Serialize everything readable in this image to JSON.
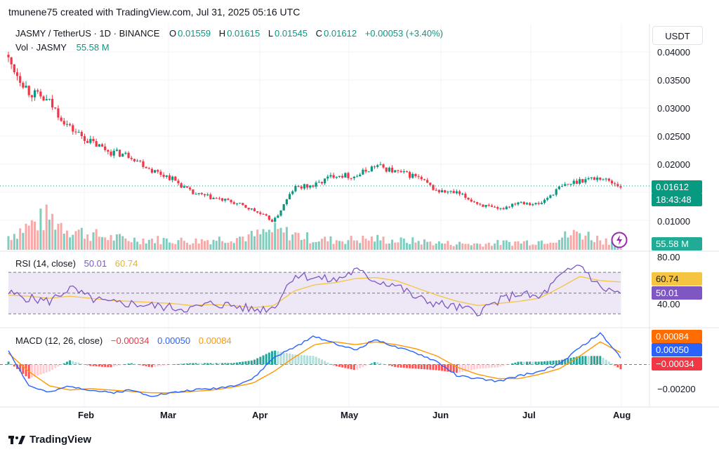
{
  "attribution": "tmunene75 created with TradingView.com, Jul 31, 2025 05:16 UTC",
  "branding": "TradingView",
  "colors": {
    "up": "#089981",
    "down": "#f23645",
    "vol_up": "#7fcdbf",
    "vol_down": "#f7a9a7",
    "rsi_line": "#7e57c2",
    "rsi_ma": "#f5c542",
    "rsi_band": "#ede7f6",
    "macd_line": "#2962ff",
    "signal_line": "#ff9800",
    "price_line": "#089981"
  },
  "price_panel": {
    "symbol": "JASMY / TetherUS · 1D · BINANCE",
    "o_label": "O",
    "o_value": "0.01559",
    "h_label": "H",
    "h_value": "0.01615",
    "l_label": "L",
    "l_value": "0.01545",
    "c_label": "C",
    "c_value": "0.01612",
    "change": "+0.00053 (+3.40%)",
    "volume_label": "Vol · JASMY",
    "volume_value": "55.58 M",
    "currency": "USDT",
    "last_price": "0.01612",
    "countdown": "18:43:48",
    "volume_tag": "55.58 M",
    "y_ticks": [
      "0.04000",
      "0.03500",
      "0.03000",
      "0.02500",
      "0.02000",
      "0.01000"
    ]
  },
  "rsi_panel": {
    "title": "RSI (14, close)",
    "rsi_value": "50.01",
    "ma_value": "60.74",
    "y_ticks": [
      "80.00",
      "40.00"
    ]
  },
  "macd_panel": {
    "title": "MACD (12, 26, close)",
    "hist_value": "−0.00034",
    "macd_value": "0.00050",
    "signal_value": "0.00084",
    "y_ticks": [
      "−0.00200"
    ]
  },
  "x_axis": {
    "months": [
      "Feb",
      "Mar",
      "Apr",
      "May",
      "Jun",
      "Jul",
      "Aug"
    ]
  },
  "chart_data": [
    {
      "type": "candlestick",
      "x_axis": "date (daily)",
      "dates": [
        "2025-01-04",
        "2025-01-11",
        "2025-01-18",
        "2025-01-25",
        "2025-02-01",
        "2025-02-08",
        "2025-02-15",
        "2025-02-22",
        "2025-03-01",
        "2025-03-08",
        "2025-03-15",
        "2025-03-22",
        "2025-03-29",
        "2025-04-05",
        "2025-04-12",
        "2025-04-19",
        "2025-04-26",
        "2025-05-03",
        "2025-05-10",
        "2025-05-17",
        "2025-05-24",
        "2025-05-31",
        "2025-06-07",
        "2025-06-14",
        "2025-06-21",
        "2025-06-28",
        "2025-07-05",
        "2025-07-12",
        "2025-07-19",
        "2025-07-26",
        "2025-07-31"
      ],
      "close": [
        0.0385,
        0.033,
        0.031,
        0.0265,
        0.024,
        0.0222,
        0.0215,
        0.019,
        0.0175,
        0.0148,
        0.014,
        0.0132,
        0.0118,
        0.0098,
        0.0158,
        0.0162,
        0.0182,
        0.0178,
        0.0198,
        0.0186,
        0.0178,
        0.0152,
        0.0148,
        0.013,
        0.0118,
        0.0134,
        0.0128,
        0.0158,
        0.0172,
        0.0176,
        0.01612
      ],
      "ylim": [
        0.009,
        0.0415
      ]
    },
    {
      "type": "bar",
      "name": "Vol · JASMY",
      "values": [
        40,
        70,
        95,
        60,
        45,
        35,
        30,
        30,
        28,
        25,
        30,
        35,
        40,
        55,
        45,
        30,
        28,
        30,
        32,
        26,
        25,
        20,
        18,
        17,
        20,
        22,
        25,
        35,
        50,
        30,
        20
      ]
    },
    {
      "type": "line",
      "name": "RSI (14, close)",
      "values": [
        50,
        45,
        42,
        55,
        45,
        40,
        40,
        38,
        36,
        35,
        40,
        38,
        34,
        36,
        68,
        65,
        62,
        72,
        62,
        58,
        45,
        40,
        36,
        32,
        42,
        50,
        45,
        65,
        78,
        55,
        50.01
      ],
      "ma": [
        48,
        47,
        45,
        47,
        45,
        43,
        42,
        41,
        40,
        38,
        39,
        38,
        36,
        38,
        52,
        58,
        60,
        64,
        65,
        62,
        55,
        48,
        42,
        38,
        40,
        42,
        45,
        55,
        66,
        62,
        60.74
      ],
      "ylim": [
        20,
        85
      ]
    },
    {
      "type": "line",
      "name": "MACD (12, 26, close)",
      "macd": [
        0.001,
        -0.0015,
        -0.002,
        -0.0015,
        -0.0018,
        -0.002,
        -0.0018,
        -0.0022,
        -0.002,
        -0.0018,
        -0.0017,
        -0.0015,
        -0.001,
        0.0005,
        0.0012,
        0.002,
        0.0015,
        0.001,
        0.0018,
        0.0012,
        0.0008,
        0.0002,
        -0.0008,
        -0.001,
        -0.0012,
        -0.0008,
        -0.0005,
        0.0,
        0.0012,
        0.0022,
        0.0005
      ],
      "signal": [
        0.0008,
        -0.0005,
        -0.0015,
        -0.0018,
        -0.0017,
        -0.0018,
        -0.0019,
        -0.002,
        -0.002,
        -0.0019,
        -0.0018,
        -0.0016,
        -0.0013,
        -0.0005,
        0.0005,
        0.0014,
        0.0016,
        0.0014,
        0.0016,
        0.0014,
        0.0011,
        0.0006,
        -0.0002,
        -0.0007,
        -0.001,
        -0.001,
        -0.0007,
        -0.0003,
        0.0006,
        0.0016,
        0.00084
      ],
      "ylim": [
        -0.0028,
        0.0022
      ]
    }
  ]
}
